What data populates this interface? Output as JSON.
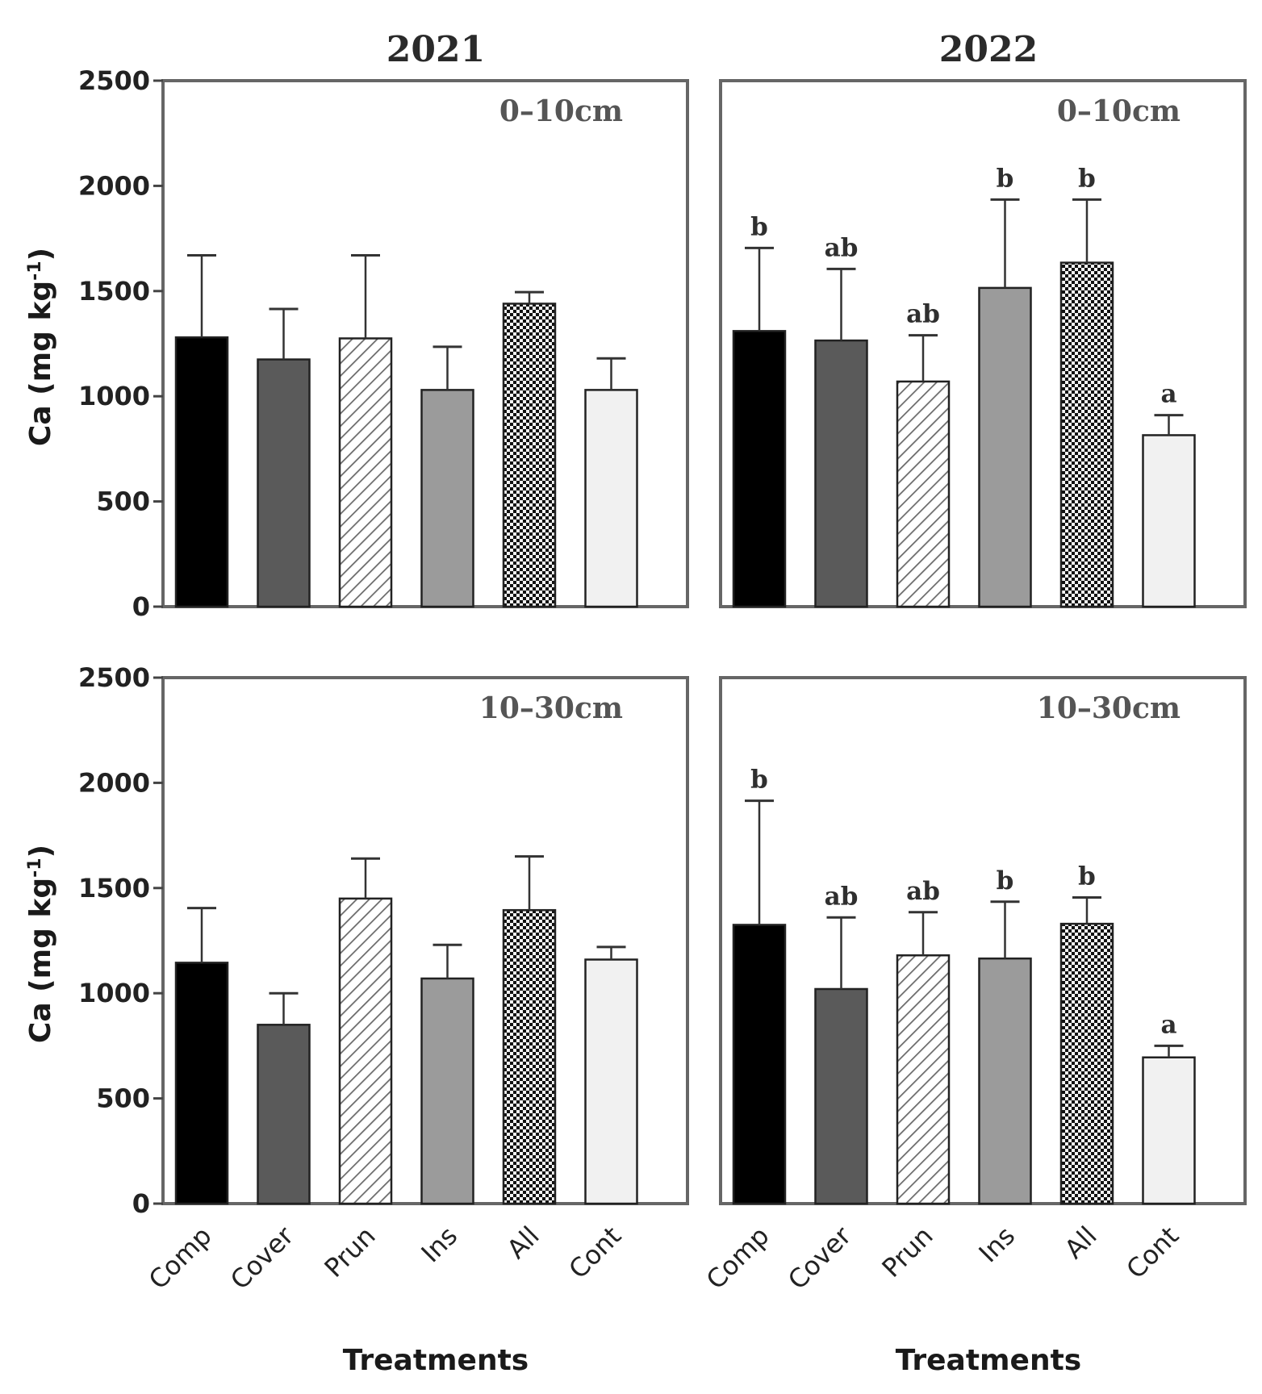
{
  "figure": {
    "ylabel": "Ca (mg kg",
    "ylabel_sup": "-1",
    "xlabel": "Treatments"
  },
  "colors": {
    "Comp": "#000000",
    "Cover": "#5a5a5a",
    "Prun": "hatch",
    "Ins": "#9b9b9b",
    "All": "checker",
    "Cont": "#f1f1f1",
    "frame": "#666666"
  },
  "chart_data": [
    {
      "type": "bar",
      "title": "2021",
      "depth": "0–10cm",
      "categories": [
        "Comp",
        "Cover",
        "Prun",
        "Ins",
        "All",
        "Cont"
      ],
      "values": [
        1280,
        1175,
        1275,
        1030,
        1440,
        1030
      ],
      "error_upper": [
        1670,
        1415,
        1670,
        1235,
        1495,
        1180
      ],
      "significance": [],
      "ylim": [
        0,
        2500
      ],
      "yticks": [
        0,
        500,
        1000,
        1500,
        2000,
        2500
      ],
      "xlabel": "",
      "ylabel": "Ca (mg kg-1)"
    },
    {
      "type": "bar",
      "title": "2022",
      "depth": "0–10cm",
      "categories": [
        "Comp",
        "Cover",
        "Prun",
        "Ins",
        "All",
        "Cont"
      ],
      "values": [
        1310,
        1265,
        1070,
        1515,
        1635,
        815
      ],
      "error_upper": [
        1705,
        1605,
        1290,
        1935,
        1935,
        910
      ],
      "significance": [
        "b",
        "ab",
        "ab",
        "b",
        "b",
        "a"
      ],
      "ylim": [
        0,
        2500
      ],
      "yticks": [
        0,
        500,
        1000,
        1500,
        2000,
        2500
      ],
      "xlabel": "",
      "ylabel": ""
    },
    {
      "type": "bar",
      "title": "",
      "depth": "10–30cm",
      "categories": [
        "Comp",
        "Cover",
        "Prun",
        "Ins",
        "All",
        "Cont"
      ],
      "values": [
        1145,
        850,
        1450,
        1070,
        1395,
        1160
      ],
      "error_upper": [
        1405,
        1000,
        1640,
        1230,
        1650,
        1220
      ],
      "significance": [],
      "ylim": [
        0,
        2500
      ],
      "yticks": [
        0,
        500,
        1000,
        1500,
        2000,
        2500
      ],
      "xlabel": "Treatments",
      "ylabel": "Ca (mg kg-1)"
    },
    {
      "type": "bar",
      "title": "",
      "depth": "10–30cm",
      "categories": [
        "Comp",
        "Cover",
        "Prun",
        "Ins",
        "All",
        "Cont"
      ],
      "values": [
        1325,
        1020,
        1180,
        1165,
        1330,
        695
      ],
      "error_upper": [
        1915,
        1360,
        1385,
        1435,
        1455,
        750
      ],
      "significance": [
        "b",
        "ab",
        "ab",
        "b",
        "b",
        "a"
      ],
      "ylim": [
        0,
        2500
      ],
      "yticks": [
        0,
        500,
        1000,
        1500,
        2000,
        2500
      ],
      "xlabel": "Treatments",
      "ylabel": ""
    }
  ]
}
